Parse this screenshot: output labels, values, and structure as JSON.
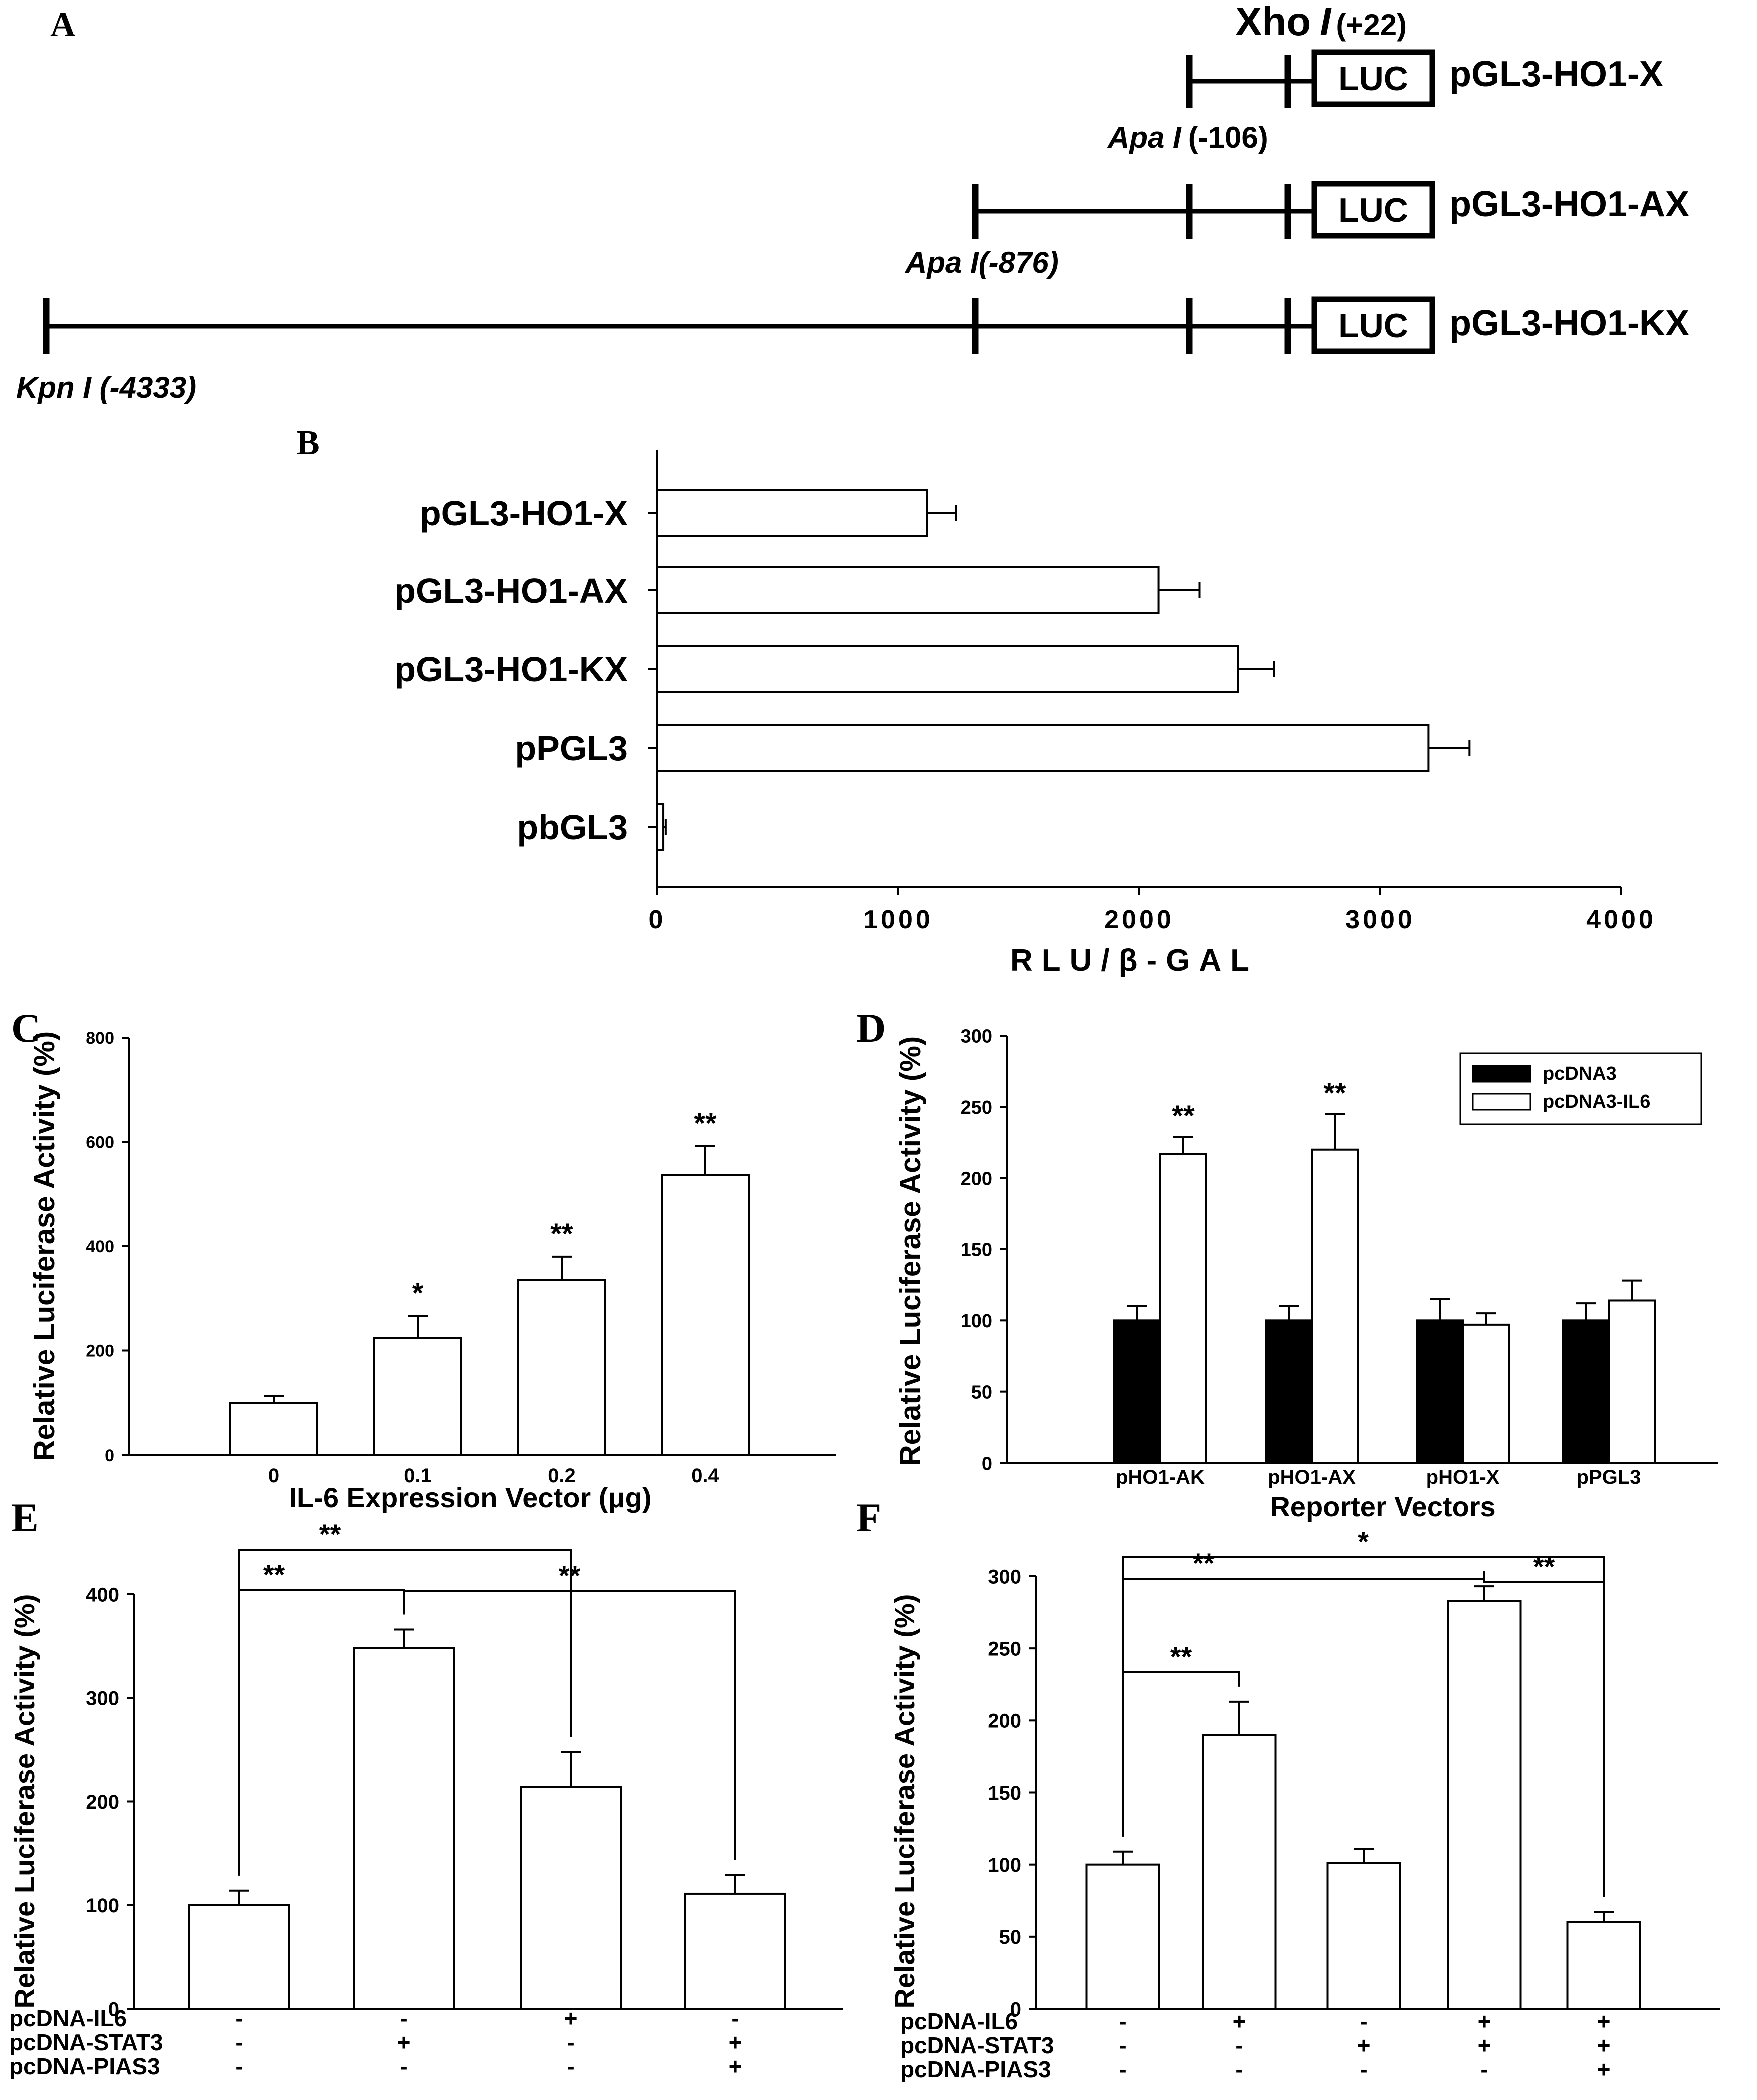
{
  "panel_labels": {
    "A": "A",
    "B": "B",
    "C": "C",
    "D": "D",
    "E": "E",
    "F": "F"
  },
  "panel_a": {
    "luc_label": "LUC",
    "xho_enzyme": "Xho",
    "xho_italic": "I",
    "xho_pos": "(+22)",
    "apa106_label": "Apa I",
    "apa106_pos": "(-106)",
    "apa876_label": "Apa I(-876)",
    "kpn_label": "Kpn I (-4333)",
    "constructs": [
      "pGL3-HO1-X",
      "pGL3-HO1-AX",
      "pGL3-HO1-KX"
    ]
  },
  "chart_data": [
    {
      "id": "B",
      "type": "bar",
      "orientation": "horizontal",
      "categories": [
        "pGL3-HO1-X",
        "pGL3-HO1-AX",
        "pGL3-HO1-KX",
        "pPGL3",
        "pbGL3"
      ],
      "values": [
        1120,
        2080,
        2410,
        3200,
        25
      ],
      "errors": [
        120,
        170,
        150,
        170,
        10
      ],
      "xlabel": "RLU/β-GAL",
      "xlim": [
        0,
        4000
      ],
      "xticks": [
        "0",
        "1000",
        "2000",
        "3000",
        "4000"
      ]
    },
    {
      "id": "C",
      "type": "bar",
      "categories": [
        "0",
        "0.1",
        "0.2",
        "0.4"
      ],
      "values": [
        100,
        224,
        335,
        537
      ],
      "errors": [
        13,
        42,
        45,
        55
      ],
      "significance": [
        "",
        "*",
        "**",
        "**"
      ],
      "ylabel": "Relative Luciferase Activity (%)",
      "xlabel": "IL-6 Expression Vector (μg)",
      "ylim": [
        0,
        800
      ],
      "yticks": [
        "0",
        "200",
        "400",
        "600",
        "800"
      ]
    },
    {
      "id": "D",
      "type": "bar",
      "categories": [
        "pHO1-AK",
        "pHO1-AX",
        "pHO1-X",
        "pPGL3"
      ],
      "series": [
        {
          "name": "pcDNA3",
          "values": [
            100,
            100,
            100,
            100
          ],
          "errors": [
            10,
            10,
            15,
            12
          ],
          "color": "#000000"
        },
        {
          "name": "pcDNA3-IL6",
          "values": [
            217,
            220,
            97,
            114
          ],
          "errors": [
            12,
            25,
            8,
            14
          ],
          "color": "#ffffff"
        }
      ],
      "significance": [
        "**",
        "**",
        "",
        ""
      ],
      "ylabel": "Relative Luciferase Activity (%)",
      "xlabel": "Reporter Vectors",
      "ylim": [
        0,
        300
      ],
      "yticks": [
        "0",
        "50",
        "100",
        "150",
        "200",
        "250",
        "300"
      ]
    },
    {
      "id": "E",
      "type": "bar",
      "values": [
        100,
        348,
        214,
        111
      ],
      "errors": [
        14,
        18,
        34,
        18
      ],
      "ylabel": "Relative Luciferase Activity (%)",
      "ylim": [
        0,
        400
      ],
      "yticks": [
        "0",
        "100",
        "200",
        "300",
        "400"
      ],
      "rows": [
        {
          "label": "pcDNA-IL6",
          "signs": [
            "-",
            "-",
            "+",
            "-"
          ]
        },
        {
          "label": "pcDNA-STAT3",
          "signs": [
            "-",
            "+",
            "-",
            "+"
          ]
        },
        {
          "label": "pcDNA-PIAS3",
          "signs": [
            "-",
            "-",
            "-",
            "+"
          ]
        }
      ],
      "comparisons": [
        {
          "from": 0,
          "to": 2,
          "label": "**"
        },
        {
          "from": 0,
          "to": 1,
          "label": "**"
        },
        {
          "from": 1,
          "to": 3,
          "label": "**"
        }
      ]
    },
    {
      "id": "F",
      "type": "bar",
      "values": [
        100,
        190,
        101,
        283,
        60
      ],
      "errors": [
        9,
        23,
        10,
        10,
        7
      ],
      "ylabel": "Relative Luciferase Activity (%)",
      "ylim": [
        0,
        300
      ],
      "yticks": [
        "0",
        "50",
        "100",
        "150",
        "200",
        "250",
        "300"
      ],
      "rows": [
        {
          "label": "pcDNA-IL6",
          "signs": [
            "-",
            "+",
            "-",
            "+",
            "+"
          ]
        },
        {
          "label": "pcDNA-STAT3",
          "signs": [
            "-",
            "-",
            "+",
            "+",
            "+"
          ]
        },
        {
          "label": "pcDNA-PIAS3",
          "signs": [
            "-",
            "-",
            "-",
            "-",
            "+"
          ]
        }
      ],
      "comparisons": [
        {
          "from": 0,
          "to": 4,
          "label": "*"
        },
        {
          "from": 0,
          "to": 3,
          "label": "**"
        },
        {
          "from": 0,
          "to": 1,
          "label": "**"
        },
        {
          "from": 3,
          "to": 4,
          "label": "**"
        }
      ]
    }
  ]
}
